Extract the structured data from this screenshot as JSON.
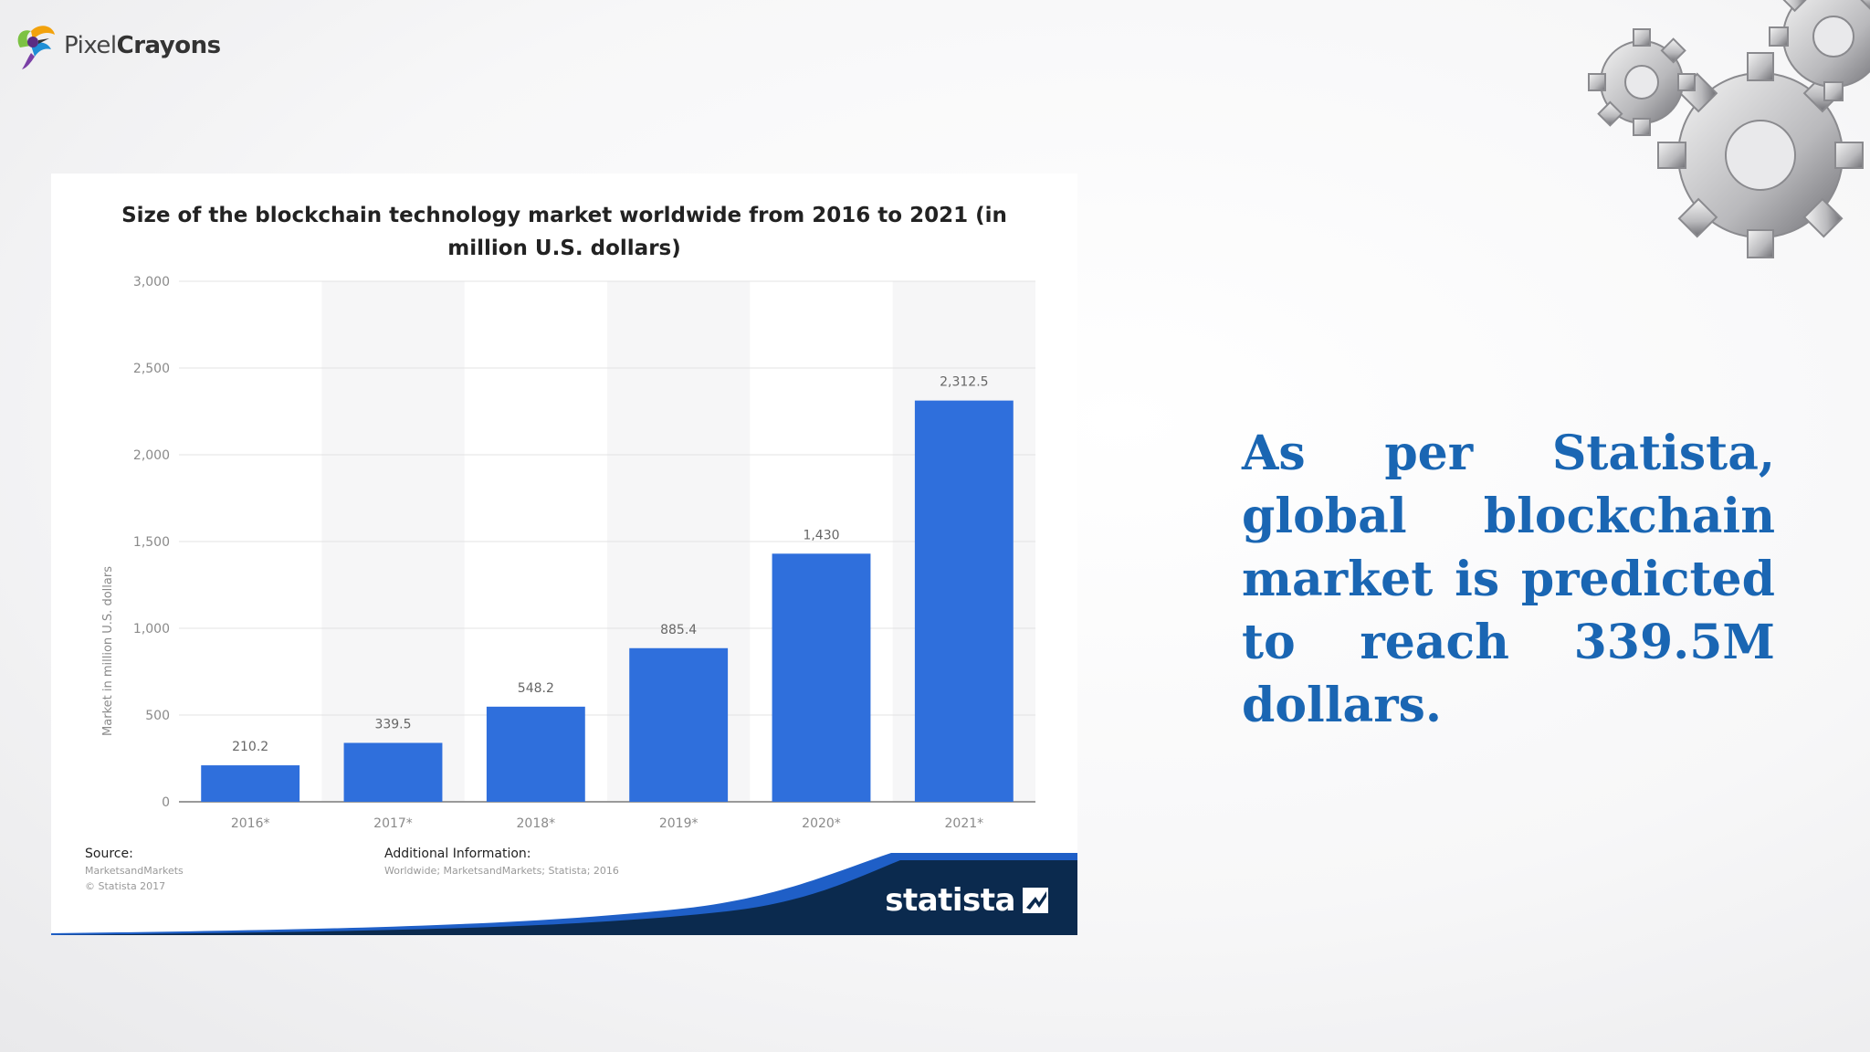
{
  "logo": {
    "name_part1": "Pixel",
    "name_part2": "Crayons"
  },
  "quote": "As per Statista, global blockchain market is predicted to reach 339.5M dollars.",
  "colors": {
    "bar": "#2f6fdc",
    "quote": "#1a66b3",
    "statista_navy": "#0b2a4e"
  },
  "chart_data": {
    "type": "bar",
    "title": "Size of the blockchain technology market worldwide from 2016 to 2021 (in million U.S. dollars)",
    "ylabel": "Market in million U.S. dollars",
    "xlabel": "",
    "categories": [
      "2016*",
      "2017*",
      "2018*",
      "2019*",
      "2020*",
      "2021*"
    ],
    "values": [
      210.2,
      339.5,
      548.2,
      885.4,
      1430,
      2312.5
    ],
    "value_labels": [
      "210.2",
      "339.5",
      "548.2",
      "885.4",
      "1,430",
      "2,312.5"
    ],
    "yticks": [
      0,
      500,
      1000,
      1500,
      2000,
      2500,
      3000
    ],
    "ytick_labels": [
      "0",
      "500",
      "1,000",
      "1,500",
      "2,000",
      "2,500",
      "3,000"
    ],
    "ylim": [
      0,
      3000
    ],
    "grid": true,
    "legend": "none"
  },
  "source": {
    "heading": "Source:",
    "lines": [
      "MarketsandMarkets",
      "© Statista 2017"
    ]
  },
  "additional": {
    "heading": "Additional Information:",
    "text": "Worldwide; MarketsandMarkets; Statista; 2016"
  },
  "brand": "statista"
}
